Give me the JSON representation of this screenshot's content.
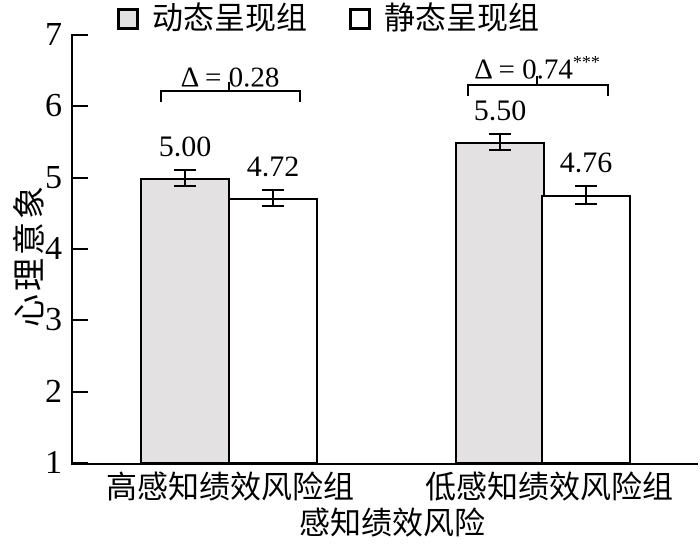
{
  "legend": {
    "items": [
      {
        "label": "动态呈现组",
        "swatch": "gray"
      },
      {
        "label": "静态呈现组",
        "swatch": "white"
      }
    ]
  },
  "chart_data": {
    "type": "bar",
    "title": "",
    "ylabel": "心理意象",
    "xlabel": "感知绩效风险",
    "ylim": [
      1,
      7
    ],
    "yticks": [
      1,
      2,
      3,
      4,
      5,
      6,
      7
    ],
    "grid": false,
    "legend_position": "top",
    "categories": [
      "高感知绩效风险组",
      "低感知绩效风险组"
    ],
    "series": [
      {
        "name": "动态呈现组",
        "fill": "#e3e1e1",
        "values": [
          5.0,
          5.5
        ]
      },
      {
        "name": "静态呈现组",
        "fill": "#ffffff",
        "values": [
          4.72,
          4.76
        ]
      }
    ],
    "value_labels": [
      [
        "5.00",
        "4.72"
      ],
      [
        "5.50",
        "4.76"
      ]
    ],
    "error_half_units": [
      [
        0.11,
        0.11
      ],
      [
        0.11,
        0.12
      ]
    ],
    "annotations": [
      {
        "text": "Δ = 0.28",
        "sig": ""
      },
      {
        "text": "Δ = 0.74",
        "sig": "***"
      }
    ],
    "colors": {
      "bar_fill_dynamic": "#e3e1e1",
      "bar_fill_static": "#ffffff",
      "line": "#000000"
    }
  }
}
